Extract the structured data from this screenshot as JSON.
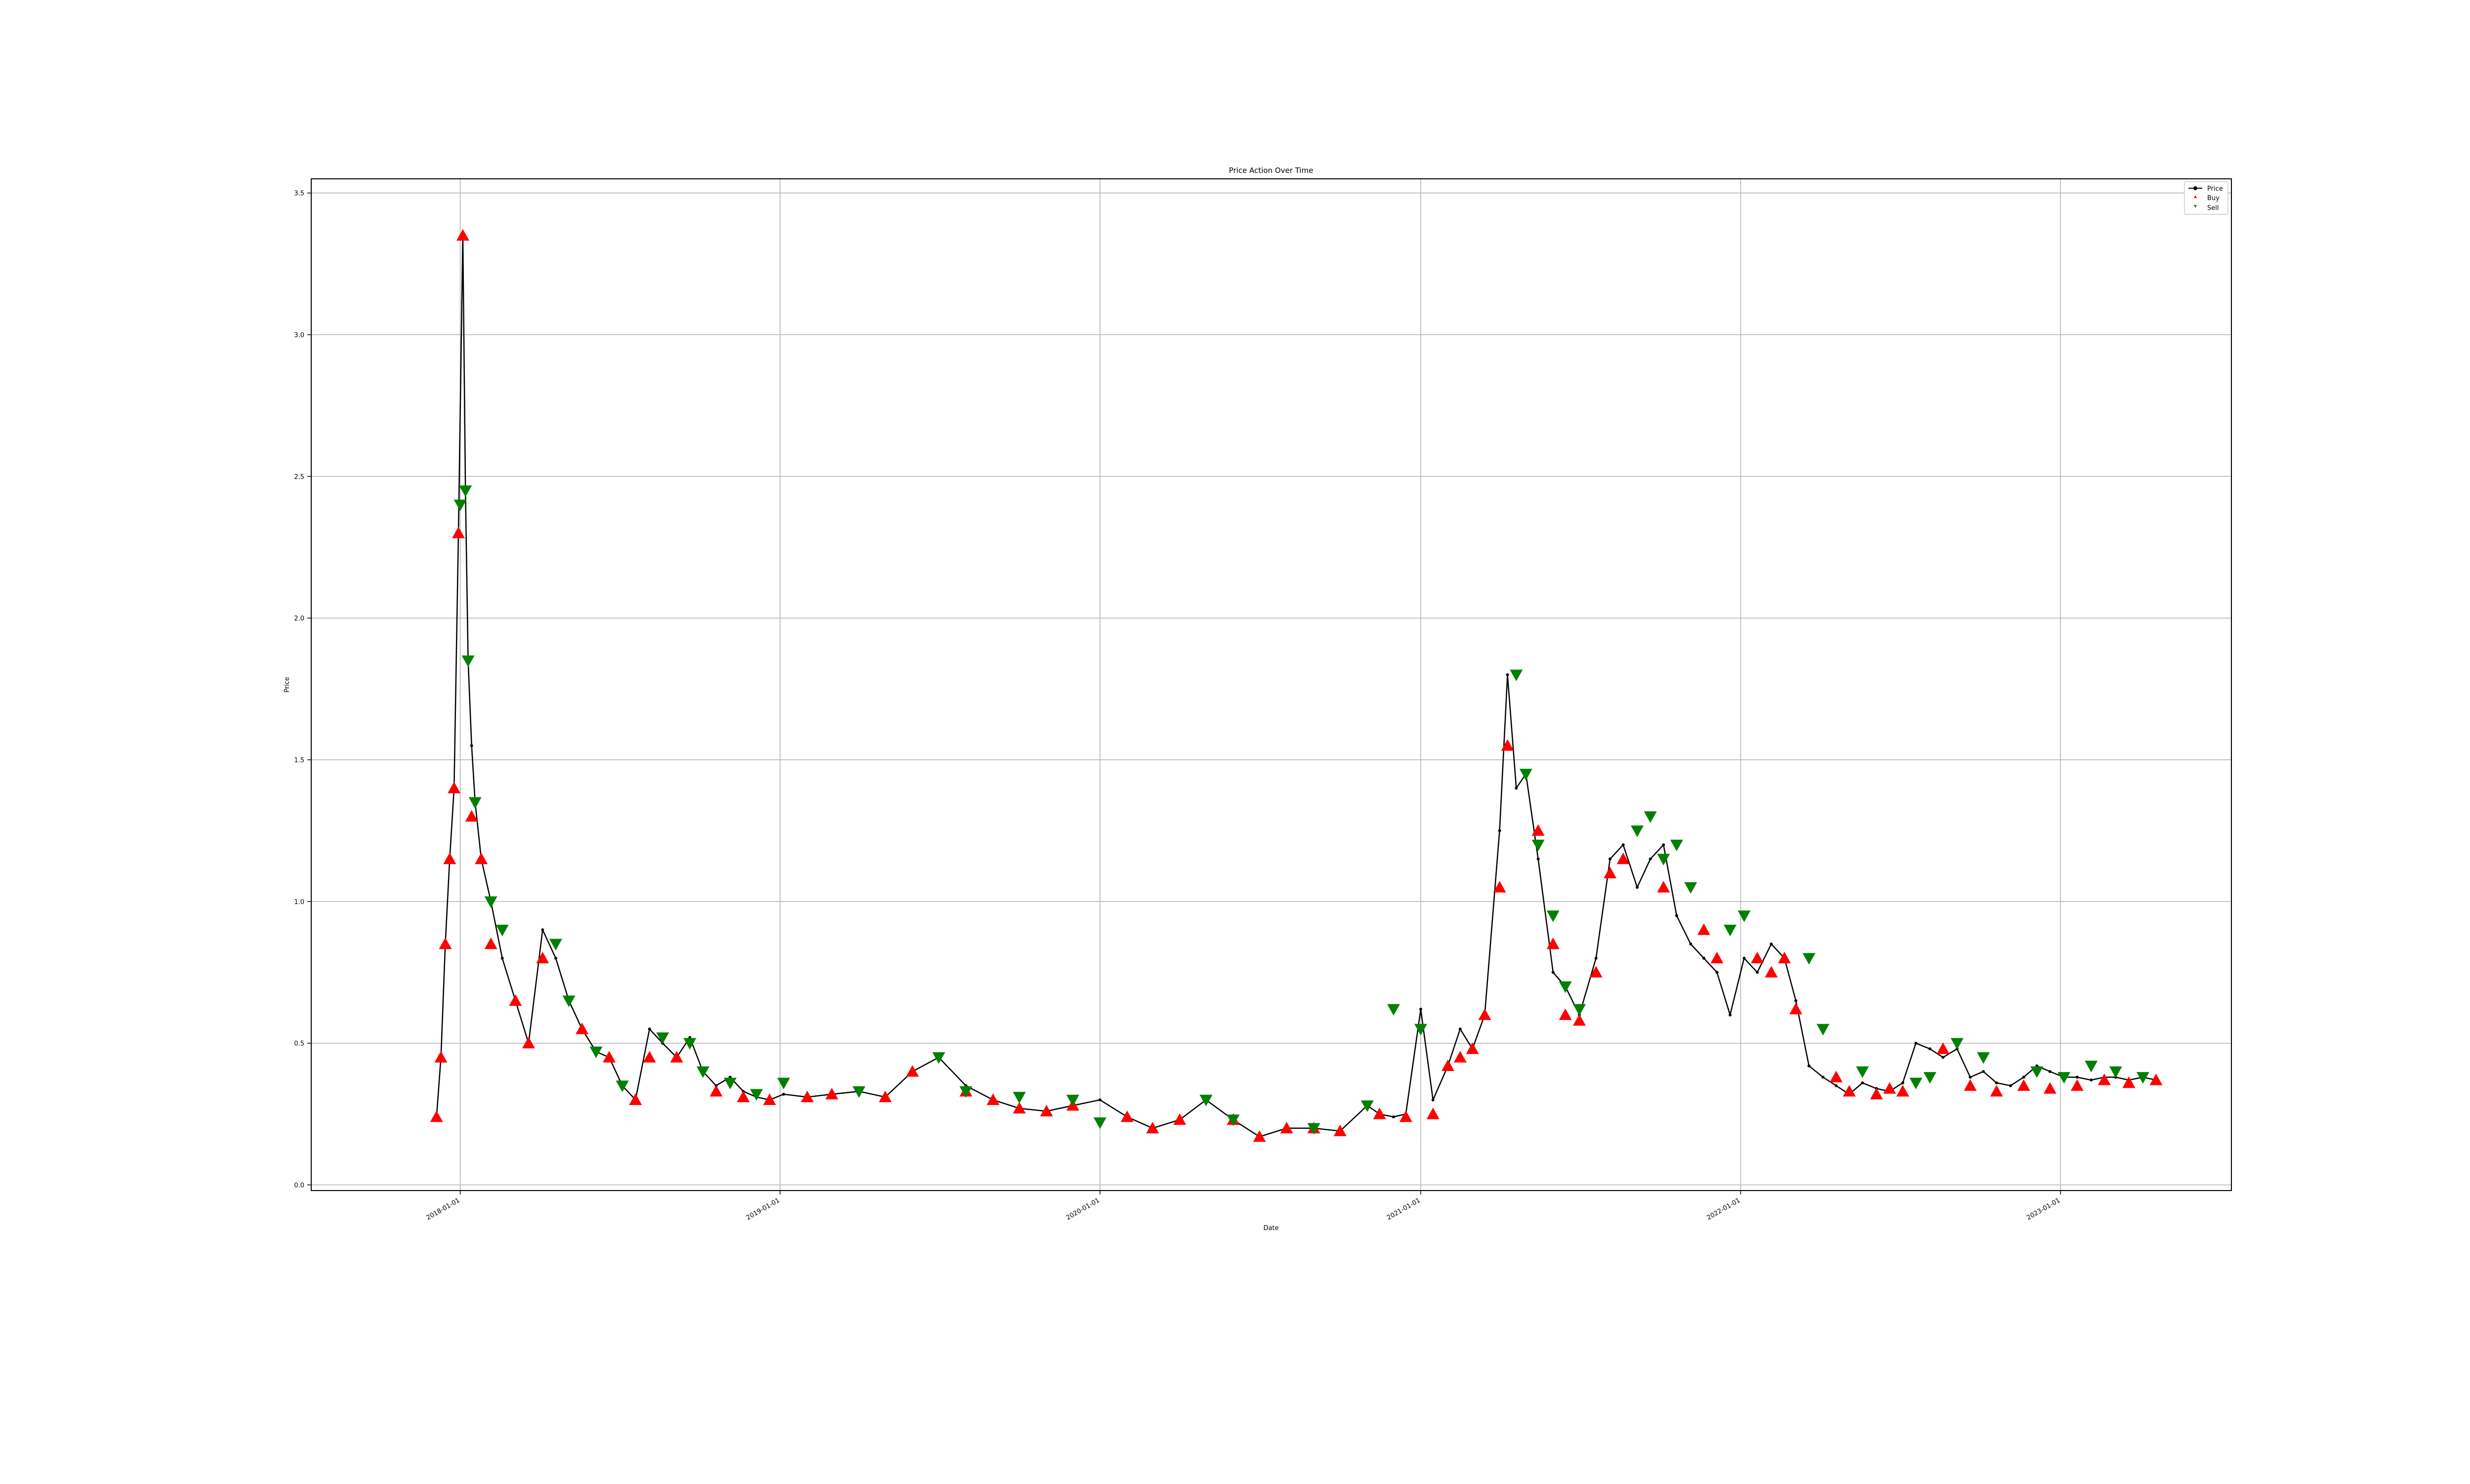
{
  "chart_data": {
    "type": "line",
    "title": "Price Action Over Time",
    "xlabel": "Date",
    "ylabel": "Price",
    "grid": true,
    "legend_position": "top-right",
    "ylim": [
      -0.02,
      3.55
    ],
    "xlim": [
      "2017-07-15",
      "2023-07-15"
    ],
    "y_ticks": [
      0.0,
      0.5,
      1.0,
      1.5,
      2.0,
      2.5,
      3.0,
      3.5
    ],
    "y_tick_labels": [
      "0.0",
      "0.5",
      "1.0",
      "1.5",
      "2.0",
      "2.5",
      "3.0",
      "3.5"
    ],
    "x_ticks": [
      "2018-01-01",
      "2019-01-01",
      "2020-01-01",
      "2021-01-01",
      "2022-01-01",
      "2023-01-01"
    ],
    "x_tick_labels": [
      "2018-01-01",
      "2019-01-01",
      "2020-01-01",
      "2021-01-01",
      "2022-01-01",
      "2023-01-01"
    ],
    "series": [
      {
        "name": "Price",
        "color": "#000000",
        "marker": "circle",
        "x": [
          "2017-12-05",
          "2017-12-10",
          "2017-12-15",
          "2017-12-20",
          "2017-12-25",
          "2017-12-30",
          "2018-01-04",
          "2018-01-07",
          "2018-01-10",
          "2018-01-14",
          "2018-01-18",
          "2018-01-25",
          "2018-02-05",
          "2018-02-18",
          "2018-03-05",
          "2018-03-20",
          "2018-04-05",
          "2018-04-20",
          "2018-05-05",
          "2018-05-20",
          "2018-06-05",
          "2018-06-20",
          "2018-07-05",
          "2018-07-20",
          "2018-08-05",
          "2018-08-20",
          "2018-09-05",
          "2018-09-20",
          "2018-10-05",
          "2018-10-20",
          "2018-11-05",
          "2018-11-20",
          "2018-12-05",
          "2018-12-20",
          "2019-01-05",
          "2019-02-01",
          "2019-03-01",
          "2019-04-01",
          "2019-05-01",
          "2019-06-01",
          "2019-07-01",
          "2019-08-01",
          "2019-09-01",
          "2019-10-01",
          "2019-11-01",
          "2019-12-01",
          "2020-01-01",
          "2020-02-01",
          "2020-03-01",
          "2020-04-01",
          "2020-05-01",
          "2020-06-01",
          "2020-07-01",
          "2020-08-01",
          "2020-09-01",
          "2020-10-01",
          "2020-11-01",
          "2020-11-15",
          "2020-12-01",
          "2020-12-15",
          "2021-01-01",
          "2021-01-15",
          "2021-02-01",
          "2021-02-15",
          "2021-03-01",
          "2021-03-15",
          "2021-04-01",
          "2021-04-10",
          "2021-04-20",
          "2021-05-01",
          "2021-05-15",
          "2021-06-01",
          "2021-06-15",
          "2021-07-01",
          "2021-07-20",
          "2021-08-05",
          "2021-08-20",
          "2021-09-05",
          "2021-09-20",
          "2021-10-05",
          "2021-10-20",
          "2021-11-05",
          "2021-11-20",
          "2021-12-05",
          "2021-12-20",
          "2022-01-05",
          "2022-01-20",
          "2022-02-05",
          "2022-02-20",
          "2022-03-05",
          "2022-03-20",
          "2022-04-05",
          "2022-04-20",
          "2022-05-05",
          "2022-05-20",
          "2022-06-05",
          "2022-06-20",
          "2022-07-05",
          "2022-07-20",
          "2022-08-05",
          "2022-08-20",
          "2022-09-05",
          "2022-09-20",
          "2022-10-05",
          "2022-10-20",
          "2022-11-05",
          "2022-11-20",
          "2022-12-05",
          "2022-12-20",
          "2023-01-05",
          "2023-01-20",
          "2023-02-05",
          "2023-02-20",
          "2023-03-05",
          "2023-03-20",
          "2023-04-05",
          "2023-04-20"
        ],
        "values": [
          0.24,
          0.45,
          0.85,
          1.15,
          1.4,
          2.3,
          3.35,
          2.45,
          1.85,
          1.55,
          1.35,
          1.15,
          1.0,
          0.8,
          0.65,
          0.5,
          0.9,
          0.8,
          0.65,
          0.55,
          0.47,
          0.45,
          0.35,
          0.3,
          0.55,
          0.5,
          0.45,
          0.52,
          0.4,
          0.35,
          0.38,
          0.33,
          0.31,
          0.3,
          0.32,
          0.31,
          0.32,
          0.33,
          0.31,
          0.4,
          0.45,
          0.35,
          0.3,
          0.27,
          0.26,
          0.28,
          0.3,
          0.24,
          0.2,
          0.23,
          0.3,
          0.23,
          0.17,
          0.2,
          0.2,
          0.19,
          0.28,
          0.25,
          0.24,
          0.25,
          0.62,
          0.3,
          0.42,
          0.55,
          0.48,
          0.6,
          1.25,
          1.8,
          1.4,
          1.45,
          1.15,
          0.75,
          0.7,
          0.6,
          0.8,
          1.15,
          1.2,
          1.05,
          1.15,
          1.2,
          0.95,
          0.85,
          0.8,
          0.75,
          0.6,
          0.8,
          0.75,
          0.85,
          0.8,
          0.65,
          0.42,
          0.38,
          0.35,
          0.32,
          0.36,
          0.34,
          0.33,
          0.36,
          0.5,
          0.48,
          0.45,
          0.48,
          0.38,
          0.4,
          0.36,
          0.35,
          0.38,
          0.42,
          0.4,
          0.38,
          0.38,
          0.37,
          0.38,
          0.38,
          0.37,
          0.38,
          0.37
        ]
      },
      {
        "name": "Buy",
        "color": "#ff0000",
        "marker": "triangle-up",
        "x": [
          "2017-12-05",
          "2017-12-10",
          "2017-12-15",
          "2017-12-20",
          "2017-12-25",
          "2017-12-30",
          "2018-01-04",
          "2018-01-14",
          "2018-01-25",
          "2018-02-05",
          "2018-03-05",
          "2018-03-20",
          "2018-04-05",
          "2018-05-20",
          "2018-06-20",
          "2018-07-20",
          "2018-08-05",
          "2018-09-05",
          "2018-10-20",
          "2018-11-20",
          "2018-12-20",
          "2019-02-01",
          "2019-03-01",
          "2019-05-01",
          "2019-06-01",
          "2019-08-01",
          "2019-09-01",
          "2019-10-01",
          "2019-11-01",
          "2019-12-01",
          "2020-02-01",
          "2020-03-01",
          "2020-04-01",
          "2020-06-01",
          "2020-07-01",
          "2020-08-01",
          "2020-09-01",
          "2020-10-01",
          "2020-11-15",
          "2020-12-15",
          "2021-01-15",
          "2021-02-01",
          "2021-02-15",
          "2021-03-01",
          "2021-03-15",
          "2021-04-01",
          "2021-04-10",
          "2021-05-15",
          "2021-06-01",
          "2021-06-15",
          "2021-07-01",
          "2021-07-20",
          "2021-08-05",
          "2021-08-20",
          "2021-10-05",
          "2021-11-20",
          "2021-12-05",
          "2022-01-20",
          "2022-02-05",
          "2022-02-20",
          "2022-03-05",
          "2022-04-20",
          "2022-05-05",
          "2022-06-05",
          "2022-06-20",
          "2022-07-05",
          "2022-08-20",
          "2022-09-20",
          "2022-10-20",
          "2022-11-20",
          "2022-12-20",
          "2023-01-20",
          "2023-02-20",
          "2023-03-20",
          "2023-04-20"
        ],
        "values": [
          0.24,
          0.45,
          0.85,
          1.15,
          1.4,
          2.3,
          3.35,
          1.3,
          1.15,
          0.85,
          0.65,
          0.5,
          0.8,
          0.55,
          0.45,
          0.3,
          0.45,
          0.45,
          0.33,
          0.31,
          0.3,
          0.31,
          0.32,
          0.31,
          0.4,
          0.33,
          0.3,
          0.27,
          0.26,
          0.28,
          0.24,
          0.2,
          0.23,
          0.23,
          0.17,
          0.2,
          0.2,
          0.19,
          0.25,
          0.24,
          0.25,
          0.42,
          0.45,
          0.48,
          0.6,
          1.05,
          1.55,
          1.25,
          0.85,
          0.6,
          0.58,
          0.75,
          1.1,
          1.15,
          1.05,
          0.9,
          0.8,
          0.8,
          0.75,
          0.8,
          0.62,
          0.38,
          0.33,
          0.32,
          0.34,
          0.33,
          0.48,
          0.35,
          0.33,
          0.35,
          0.34,
          0.35,
          0.37,
          0.36,
          0.37
        ]
      },
      {
        "name": "Sell",
        "color": "#008000",
        "marker": "triangle-down",
        "x": [
          "2018-01-01",
          "2018-01-07",
          "2018-01-10",
          "2018-01-18",
          "2018-02-05",
          "2018-02-18",
          "2018-04-20",
          "2018-05-05",
          "2018-06-05",
          "2018-07-05",
          "2018-08-20",
          "2018-09-20",
          "2018-10-05",
          "2018-11-05",
          "2018-12-05",
          "2019-01-05",
          "2019-04-01",
          "2019-07-01",
          "2019-08-01",
          "2019-10-01",
          "2019-12-01",
          "2020-01-01",
          "2020-05-01",
          "2020-06-01",
          "2020-09-01",
          "2020-11-01",
          "2020-12-01",
          "2021-01-01",
          "2021-04-20",
          "2021-05-01",
          "2021-05-15",
          "2021-06-01",
          "2021-06-15",
          "2021-07-01",
          "2021-09-05",
          "2021-09-20",
          "2021-10-05",
          "2021-10-20",
          "2021-11-05",
          "2021-12-20",
          "2022-01-05",
          "2022-03-20",
          "2022-04-05",
          "2022-05-20",
          "2022-07-20",
          "2022-08-05",
          "2022-09-05",
          "2022-10-05",
          "2022-12-05",
          "2023-01-05",
          "2023-02-05",
          "2023-03-05",
          "2023-04-05"
        ],
        "values": [
          2.4,
          2.45,
          1.85,
          1.35,
          1.0,
          0.9,
          0.85,
          0.65,
          0.47,
          0.35,
          0.52,
          0.5,
          0.4,
          0.36,
          0.32,
          0.36,
          0.33,
          0.45,
          0.33,
          0.31,
          0.3,
          0.22,
          0.3,
          0.23,
          0.2,
          0.28,
          0.62,
          0.55,
          1.8,
          1.45,
          1.2,
          0.95,
          0.7,
          0.62,
          1.25,
          1.3,
          1.15,
          1.2,
          1.05,
          0.9,
          0.95,
          0.8,
          0.55,
          0.4,
          0.36,
          0.38,
          0.5,
          0.45,
          0.4,
          0.38,
          0.42,
          0.4,
          0.38
        ]
      }
    ]
  }
}
